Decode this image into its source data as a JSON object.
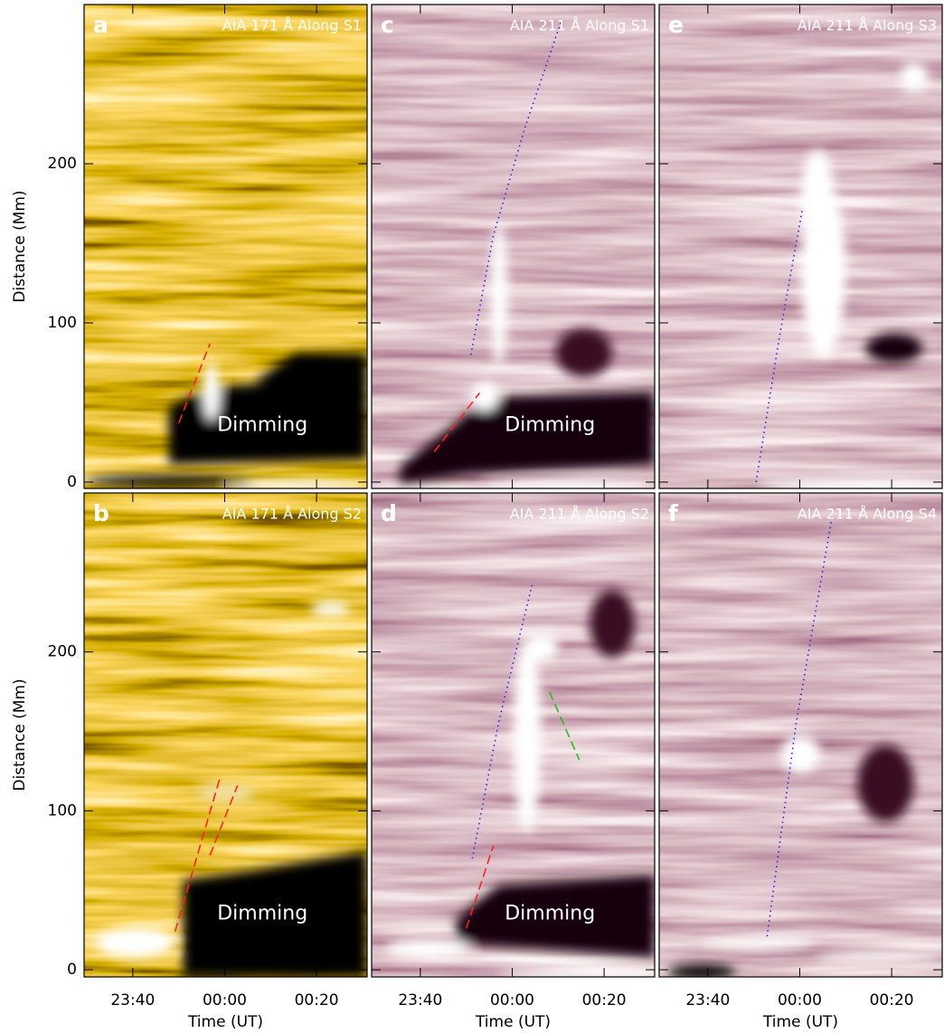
{
  "chart_data": [
    {
      "type": "image",
      "panel_label": "a",
      "title": "AIA 171 Å Along S1",
      "colormap": "orange",
      "annotation": "Dimming",
      "ylabel": "Distance (Mm)",
      "xlim": [
        -30.6,
        31
      ],
      "xticks": [
        -20,
        0,
        20
      ],
      "ylim": [
        -4,
        300
      ],
      "yticks": [
        0,
        100,
        200
      ],
      "lines": [
        {
          "color": "#ff2020",
          "style": "dashed",
          "x": [
            -10.0,
            -3.2
          ],
          "y": [
            37,
            87
          ]
        }
      ]
    },
    {
      "type": "image",
      "panel_label": "c",
      "title": "AIA 211 Å Along S1",
      "colormap": "purple",
      "annotation": "Dimming",
      "xlim": [
        -30.6,
        31
      ],
      "xticks": [
        -20,
        0,
        20
      ],
      "ylim": [
        -4,
        300
      ],
      "yticks": [
        0,
        100,
        200
      ],
      "lines": [
        {
          "color": "#ff2020",
          "style": "dashed",
          "x": [
            -17,
            -7.1
          ],
          "y": [
            19,
            56
          ]
        },
        {
          "color": "#2020ff",
          "style": "dotted",
          "x": [
            -9,
            -4.1,
            2.8,
            10.6
          ],
          "y": [
            80,
            155,
            223,
            289
          ]
        }
      ]
    },
    {
      "type": "image",
      "panel_label": "e",
      "title": "AIA 211 Å Along S3",
      "colormap": "purple",
      "xlim": [
        -30.6,
        31
      ],
      "xticks": [
        -20,
        0,
        20
      ],
      "ylim": [
        -4,
        300
      ],
      "yticks": [
        0,
        100,
        200
      ],
      "lines": [
        {
          "color": "#2020ff",
          "style": "dotted",
          "x": [
            -9.5,
            -4.5,
            0.6
          ],
          "y": [
            0,
            90,
            172
          ]
        }
      ]
    },
    {
      "type": "image",
      "panel_label": "b",
      "title": "AIA 171 Å Along S2",
      "colormap": "orange",
      "annotation": "Dimming",
      "ylabel": "Distance (Mm)",
      "xlabel": "Time (UT)",
      "xlim": [
        -30.6,
        31
      ],
      "xticks": [
        {
          "value": -20,
          "label": "23:40"
        },
        {
          "value": 0,
          "label": "00:00"
        },
        {
          "value": 20,
          "label": "00:20"
        }
      ],
      "ylim": [
        -4.5,
        300
      ],
      "yticks": [
        0,
        100,
        200
      ],
      "lines": [
        {
          "color": "#ff2020",
          "style": "dashed",
          "x": [
            -10.8,
            -1
          ],
          "y": [
            24,
            121
          ]
        },
        {
          "color": "#ff2020",
          "style": "dashed",
          "x": [
            -3.2,
            2.8
          ],
          "y": [
            72,
            116
          ]
        }
      ]
    },
    {
      "type": "image",
      "panel_label": "d",
      "title": "AIA 211 Å Along S2",
      "colormap": "purple",
      "annotation": "Dimming",
      "xlabel": "Time (UT)",
      "xlim": [
        -30.6,
        31
      ],
      "xticks": [
        {
          "value": -20,
          "label": "23:40"
        },
        {
          "value": 0,
          "label": "00:00"
        },
        {
          "value": 20,
          "label": "00:20"
        }
      ],
      "ylim": [
        -4.5,
        300
      ],
      "yticks": [
        0,
        100,
        200
      ],
      "lines": [
        {
          "color": "#ff2020",
          "style": "dashed",
          "x": [
            -10,
            -4.1
          ],
          "y": [
            26,
            78
          ]
        },
        {
          "color": "#2020ff",
          "style": "dotted",
          "x": [
            -8.7,
            -3,
            4.3
          ],
          "y": [
            70,
            155,
            242
          ]
        },
        {
          "color": "#20c020",
          "style": "dashed",
          "x": [
            8.1,
            14.6
          ],
          "y": [
            175,
            132
          ]
        }
      ]
    },
    {
      "type": "image",
      "panel_label": "f",
      "title": "AIA 211 Å Along S4",
      "colormap": "purple",
      "xlabel": "Time (UT)",
      "xlim": [
        -30.6,
        31
      ],
      "xticks": [
        {
          "value": -20,
          "label": "23:40"
        },
        {
          "value": 0,
          "label": "00:00"
        },
        {
          "value": 20,
          "label": "00:20"
        }
      ],
      "ylim": [
        -4.5,
        300
      ],
      "yticks": [
        0,
        100,
        200
      ],
      "lines": [
        {
          "color": "#2020ff",
          "style": "dotted",
          "x": [
            -7.1,
            -0.8,
            7.1
          ],
          "y": [
            21,
            155,
            286
          ]
        }
      ]
    }
  ]
}
